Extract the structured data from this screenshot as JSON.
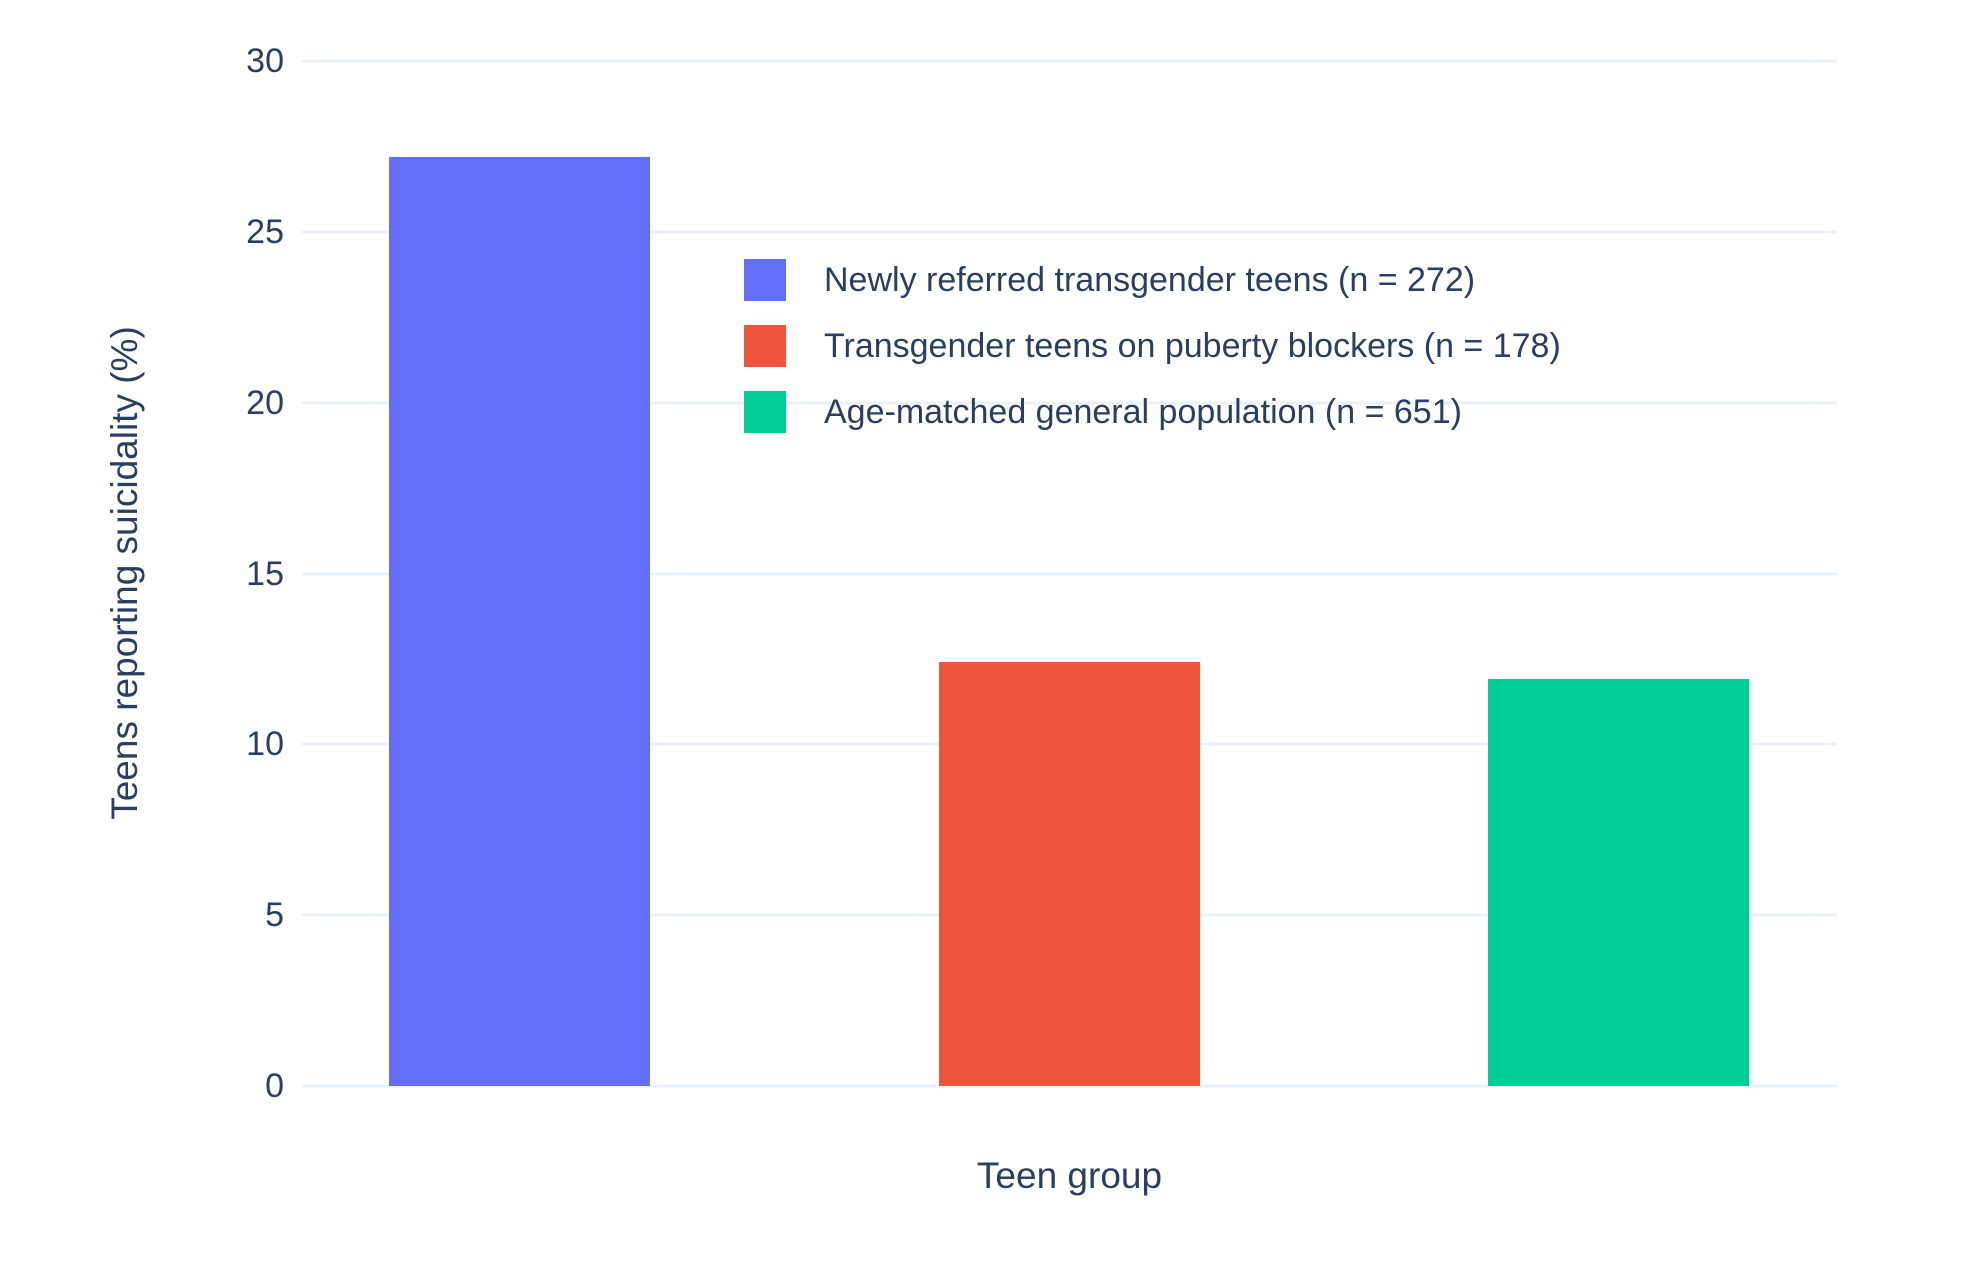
{
  "figure": {
    "background": "#ffffff",
    "text_color": "#2a3f5f",
    "grid_color": "#EBF0F8"
  },
  "chart_data": {
    "type": "bar",
    "title": "",
    "xlabel": "Teen group",
    "ylabel": "Teens reporting suicidality (%)",
    "ylim": [
      0,
      30
    ],
    "yticks": [
      0,
      5,
      10,
      15,
      20,
      25,
      30
    ],
    "grid": true,
    "legend_position": "inside-upper-left",
    "categories": [
      "Newly referred transgender teens",
      "Transgender teens on puberty blockers",
      "Age-matched general population"
    ],
    "series": [
      {
        "id": "newly-referred-transgender-teens",
        "name": "Newly referred transgender teens (n = 272)",
        "n": 272,
        "value": 27.2,
        "color": "#636EFA"
      },
      {
        "id": "transgender-teens-on-puberty-blockers",
        "name": "Transgender teens on puberty blockers (n = 178)",
        "n": 178,
        "value": 12.4,
        "color": "#EF553B"
      },
      {
        "id": "age-matched-general-population",
        "name": "Age-matched general population (n = 651)",
        "n": 651,
        "value": 11.9,
        "color": "#00CC96"
      }
    ]
  }
}
